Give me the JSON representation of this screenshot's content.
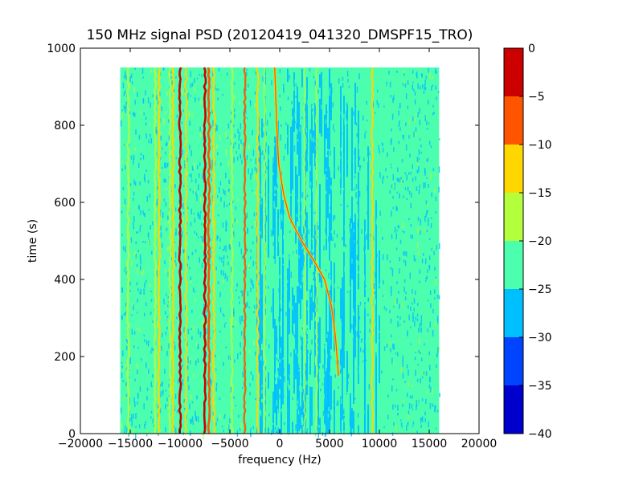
{
  "chart_data": {
    "type": "heatmap",
    "title": "150 MHz signal PSD (20120419_041320_DMSPF15_TRO)",
    "xlabel": "frequency (Hz)",
    "ylabel": "time (s)",
    "xlim": [
      -20000,
      20000
    ],
    "ylim": [
      0,
      1000
    ],
    "xticks": [
      -20000,
      -15000,
      -10000,
      -5000,
      0,
      5000,
      10000,
      15000,
      20000
    ],
    "xtick_labels": [
      "−20000",
      "−15000",
      "−10000",
      "−5000",
      "0",
      "5000",
      "10000",
      "15000",
      "20000"
    ],
    "yticks": [
      0,
      200,
      400,
      600,
      800,
      1000
    ],
    "ytick_labels": [
      "0",
      "200",
      "400",
      "600",
      "800",
      "1000"
    ],
    "data_extent": {
      "freq_min": -16000,
      "freq_max": 16000,
      "time_min": 0,
      "time_max": 950
    },
    "colorbar": {
      "levels": [
        -40,
        -35,
        -30,
        -25,
        -20,
        -15,
        -10,
        -5,
        0
      ],
      "tick_labels": [
        "−40",
        "−35",
        "−30",
        "−25",
        "−20",
        "−15",
        "−10",
        "−5",
        "0"
      ],
      "colors": [
        "#0000cd",
        "#0044ff",
        "#00bfff",
        "#4cffaf",
        "#b4ff3c",
        "#ffd700",
        "#ff5500",
        "#cd0000"
      ]
    },
    "background_level": -22.5,
    "blue_band": {
      "freq_min": -2500,
      "freq_max": 11000,
      "level": -27.5
    },
    "static_lines": [
      {
        "freq": -15200,
        "level": -17.5,
        "strength": 0.8
      },
      {
        "freq": -12500,
        "level": -17.5,
        "strength": 0.7
      },
      {
        "freq": -12100,
        "level": -12.5,
        "strength": 0.9
      },
      {
        "freq": -11000,
        "level": -17.5,
        "strength": 0.7
      },
      {
        "freq": -10700,
        "level": -12.5,
        "strength": 0.9
      },
      {
        "freq": -10000,
        "level": -2.5,
        "strength": 1.0
      },
      {
        "freq": -9400,
        "level": -12.5,
        "strength": 0.8
      },
      {
        "freq": -7500,
        "level": -2.5,
        "strength": 1.0
      },
      {
        "freq": -7100,
        "level": -7.5,
        "strength": 1.0
      },
      {
        "freq": -6600,
        "level": -12.5,
        "strength": 0.9
      },
      {
        "freq": -4800,
        "level": -17.5,
        "strength": 0.7
      },
      {
        "freq": -3500,
        "level": -7.5,
        "strength": 0.8
      },
      {
        "freq": -2200,
        "level": -12.5,
        "strength": 0.8
      },
      {
        "freq": -1500,
        "level": -17.5,
        "strength": 0.6
      },
      {
        "freq": 2500,
        "level": -17.5,
        "strength": 0.5
      },
      {
        "freq": 3700,
        "level": -17.5,
        "strength": 0.5
      },
      {
        "freq": 9300,
        "level": -12.5,
        "strength": 0.8
      }
    ],
    "doppler_trace": {
      "level": -7.5,
      "points": [
        {
          "time": 950,
          "freq": -500
        },
        {
          "time": 800,
          "freq": -300
        },
        {
          "time": 700,
          "freq": -100
        },
        {
          "time": 620,
          "freq": 400
        },
        {
          "time": 560,
          "freq": 1000
        },
        {
          "time": 500,
          "freq": 2200
        },
        {
          "time": 450,
          "freq": 3400
        },
        {
          "time": 400,
          "freq": 4500
        },
        {
          "time": 330,
          "freq": 5200
        },
        {
          "time": 250,
          "freq": 5600
        },
        {
          "time": 150,
          "freq": 5900
        }
      ]
    }
  }
}
